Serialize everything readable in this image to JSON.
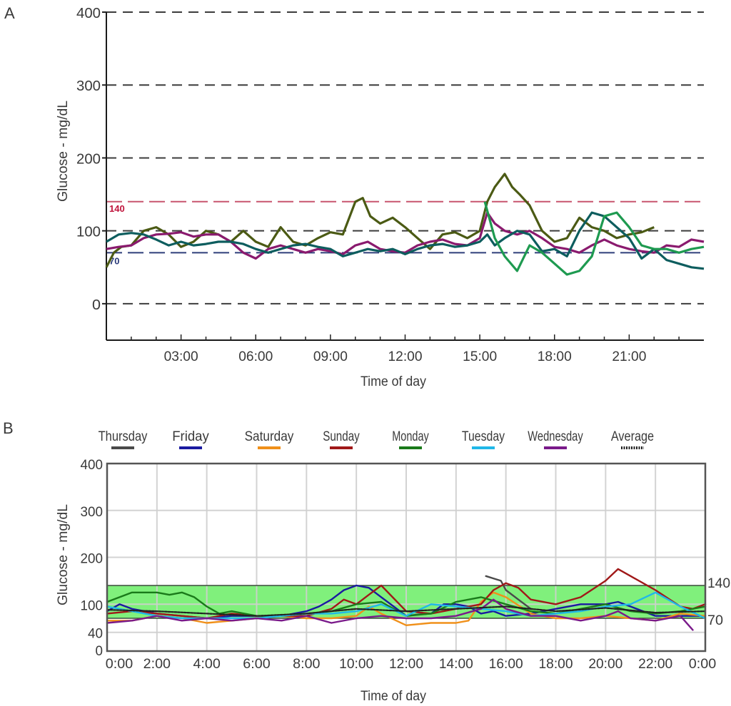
{
  "chart_data": [
    {
      "panel_label": "A",
      "type": "line",
      "xlabel": "Time of day",
      "ylabel": "Glucose - mg/dL",
      "xlim": [
        0,
        24
      ],
      "ylim": [
        -50,
        400
      ],
      "x_tick_labels": [
        "03:00",
        "06:00",
        "09:00",
        "12:00",
        "15:00",
        "18:00",
        "21:00"
      ],
      "x_tick_values": [
        3,
        6,
        9,
        12,
        15,
        18,
        21
      ],
      "y_tick_labels": [
        "400",
        "300",
        "200",
        "100",
        "0"
      ],
      "y_tick_values": [
        400,
        300,
        200,
        100,
        0
      ],
      "grid": "dashed horizontal",
      "reference_lines": [
        {
          "label": "140",
          "value": 140,
          "color": "#c8556e"
        },
        {
          "label": "70",
          "value": 70,
          "color": "#2f3f7a"
        }
      ],
      "series": [
        {
          "name": "olive",
          "color": "#4b5a14",
          "x": [
            0,
            0.3,
            0.6,
            1,
            1.5,
            2,
            2.5,
            3,
            3.5,
            4,
            4.5,
            5,
            5.5,
            6,
            6.5,
            7,
            7.5,
            8,
            8.5,
            9,
            9.5,
            10,
            10.3,
            10.6,
            11,
            11.5,
            12,
            12.5,
            13,
            13.5,
            14,
            14.5,
            15,
            15.3,
            15.6,
            16,
            16.3,
            16.6,
            17,
            17.5,
            18,
            18.5,
            19,
            19.5,
            20,
            20.5,
            21,
            21.5,
            22
          ],
          "y": [
            50,
            70,
            78,
            80,
            100,
            105,
            95,
            78,
            85,
            100,
            95,
            85,
            100,
            85,
            78,
            105,
            85,
            80,
            90,
            98,
            95,
            140,
            145,
            120,
            110,
            118,
            105,
            90,
            75,
            95,
            98,
            90,
            100,
            140,
            160,
            178,
            160,
            150,
            135,
            100,
            85,
            90,
            118,
            105,
            100,
            90,
            95,
            98,
            105
          ]
        },
        {
          "name": "magenta",
          "color": "#8a1a6e",
          "x": [
            0,
            0.5,
            1,
            1.5,
            2,
            2.5,
            3,
            3.5,
            4,
            4.5,
            5,
            5.5,
            6,
            6.5,
            7,
            7.5,
            8,
            8.5,
            9,
            9.5,
            10,
            10.5,
            11,
            11.5,
            12,
            12.5,
            13,
            13.5,
            14,
            14.5,
            15,
            15.3,
            15.6,
            16,
            16.5,
            17,
            17.5,
            18,
            18.5,
            19,
            19.5,
            20,
            20.5,
            21,
            21.5,
            22,
            22.5,
            23,
            23.5,
            24
          ],
          "y": [
            75,
            78,
            80,
            90,
            95,
            96,
            98,
            92,
            95,
            95,
            85,
            70,
            62,
            75,
            80,
            75,
            70,
            75,
            72,
            68,
            80,
            85,
            75,
            72,
            70,
            80,
            85,
            88,
            82,
            80,
            90,
            125,
            110,
            100,
            95,
            100,
            90,
            78,
            75,
            70,
            80,
            88,
            80,
            75,
            72,
            70,
            80,
            78,
            88,
            85
          ]
        },
        {
          "name": "teal",
          "color": "#0d5d5e",
          "x": [
            0,
            0.5,
            1,
            1.5,
            2,
            2.5,
            3,
            3.5,
            4,
            4.5,
            5,
            5.5,
            6,
            6.5,
            7,
            7.5,
            8,
            8.5,
            9,
            9.5,
            10,
            10.5,
            11,
            11.5,
            12,
            12.5,
            13,
            13.5,
            14,
            14.5,
            15,
            15.3,
            15.6,
            16,
            16.5,
            17,
            17.5,
            18,
            18.5,
            19,
            19.5,
            20,
            20.5,
            21,
            21.5,
            22,
            22.5,
            23,
            23.5,
            24
          ],
          "y": [
            85,
            95,
            97,
            95,
            88,
            80,
            85,
            80,
            82,
            85,
            85,
            82,
            75,
            70,
            75,
            80,
            82,
            78,
            75,
            65,
            70,
            75,
            72,
            75,
            68,
            75,
            80,
            82,
            78,
            80,
            85,
            95,
            80,
            90,
            100,
            95,
            72,
            75,
            65,
            100,
            125,
            120,
            105,
            90,
            62,
            75,
            60,
            55,
            50,
            48
          ]
        },
        {
          "name": "green",
          "color": "#1e9a50",
          "x": [
            15.2,
            15.6,
            16,
            16.5,
            17,
            17.5,
            18,
            18.5,
            19,
            19.5,
            20,
            20.5,
            21,
            21.5,
            22,
            22.5,
            23,
            23.5,
            24
          ],
          "y": [
            140,
            90,
            65,
            45,
            80,
            70,
            55,
            40,
            45,
            65,
            120,
            125,
            105,
            80,
            75,
            75,
            70,
            75,
            78
          ]
        }
      ]
    },
    {
      "panel_label": "B",
      "type": "line",
      "xlabel": "Time of day",
      "ylabel": "Glucose - mg/dL",
      "xlim": [
        0,
        24
      ],
      "ylim": [
        0,
        400
      ],
      "x_tick_labels": [
        "0:00",
        "2:00",
        "4:00",
        "6:00",
        "8:00",
        "10:00",
        "12:00",
        "14:00",
        "16:00",
        "18:00",
        "20:00",
        "22:00",
        "0:00"
      ],
      "x_tick_values": [
        0,
        2,
        4,
        6,
        8,
        10,
        12,
        14,
        16,
        18,
        20,
        22,
        24
      ],
      "y_tick_labels": [
        "400",
        "300",
        "200",
        "100",
        "40",
        "0"
      ],
      "y_tick_values": [
        400,
        300,
        200,
        100,
        40,
        0
      ],
      "grid": "on",
      "target_range": {
        "low": 70,
        "high": 140,
        "low_label": "70",
        "high_label": "140",
        "color": "#80f07c"
      },
      "legend_position": "top",
      "legend": [
        {
          "name": "Thursday",
          "color": "#4a4a4a"
        },
        {
          "name": "Friday",
          "color": "#1a1aa0"
        },
        {
          "name": "Saturday",
          "color": "#f0901a"
        },
        {
          "name": "Sunday",
          "color": "#a01818"
        },
        {
          "name": "Monday",
          "color": "#1a7a1a"
        },
        {
          "name": "Tuesday",
          "color": "#20b8e8"
        },
        {
          "name": "Wednesday",
          "color": "#7a1a8a"
        },
        {
          "name": "Average",
          "color": "#222222"
        }
      ],
      "series": [
        {
          "name": "Thursday",
          "color": "#4a4a4a",
          "x": [
            15.2,
            15.5,
            15.8,
            16,
            16.5,
            17
          ],
          "y": [
            160,
            155,
            150,
            130,
            110,
            90
          ]
        },
        {
          "name": "Friday",
          "color": "#1a1aa0",
          "x": [
            0,
            0.5,
            1,
            1.5,
            2,
            3,
            4,
            5,
            6,
            7,
            8,
            8.5,
            9,
            9.5,
            10,
            10.5,
            11,
            11.5,
            12,
            12.5,
            13,
            13.5,
            14,
            14.5,
            15,
            15.5,
            16,
            17,
            18,
            19,
            20,
            20.5,
            21,
            22,
            23,
            24
          ],
          "y": [
            85,
            100,
            90,
            85,
            80,
            75,
            70,
            75,
            75,
            75,
            85,
            95,
            110,
            130,
            140,
            135,
            115,
            95,
            75,
            78,
            80,
            100,
            100,
            95,
            80,
            85,
            75,
            80,
            90,
            100,
            100,
            105,
            95,
            75,
            75,
            75
          ]
        },
        {
          "name": "Saturday",
          "color": "#f0901a",
          "x": [
            0,
            1,
            2,
            3,
            4,
            5,
            6,
            7,
            8,
            9,
            10,
            10.5,
            11,
            12,
            13,
            14,
            14.5,
            15,
            15.5,
            16,
            17,
            18,
            19,
            20,
            21,
            22,
            23,
            24
          ],
          "y": [
            65,
            65,
            75,
            70,
            60,
            65,
            70,
            75,
            70,
            70,
            75,
            95,
            80,
            55,
            60,
            60,
            65,
            105,
            125,
            115,
            80,
            70,
            70,
            75,
            70,
            65,
            80,
            75
          ]
        },
        {
          "name": "Sunday",
          "color": "#a01818",
          "x": [
            0,
            1,
            2,
            3,
            4,
            5,
            6,
            7,
            8,
            9,
            9.5,
            10,
            10.5,
            11,
            12,
            13,
            14,
            15,
            15.5,
            16,
            16.5,
            17,
            18,
            19,
            20,
            20.5,
            21,
            22,
            23,
            23.5,
            24
          ],
          "y": [
            80,
            85,
            80,
            75,
            70,
            80,
            75,
            75,
            75,
            90,
            110,
            100,
            120,
            140,
            85,
            80,
            90,
            100,
            130,
            145,
            135,
            110,
            100,
            115,
            150,
            175,
            160,
            130,
            95,
            90,
            100
          ]
        },
        {
          "name": "Monday",
          "color": "#1a7a1a",
          "x": [
            0,
            0.5,
            1,
            2,
            2.5,
            3,
            3.5,
            4,
            4.5,
            5,
            6,
            7,
            8,
            9,
            10,
            11,
            12,
            13,
            14,
            15,
            16,
            17,
            18,
            19,
            20,
            21,
            22,
            23,
            24
          ],
          "y": [
            105,
            115,
            125,
            125,
            120,
            125,
            115,
            95,
            80,
            85,
            75,
            75,
            80,
            85,
            100,
            105,
            75,
            80,
            105,
            115,
            100,
            85,
            80,
            90,
            100,
            85,
            80,
            85,
            95
          ]
        },
        {
          "name": "Tuesday",
          "color": "#20b8e8",
          "x": [
            0,
            1,
            2,
            3,
            4,
            5,
            6,
            7,
            8,
            9,
            10,
            11,
            12,
            13,
            14,
            15,
            16,
            17,
            18,
            19,
            20,
            21,
            22,
            23,
            24
          ],
          "y": [
            95,
            85,
            75,
            70,
            70,
            70,
            70,
            75,
            80,
            80,
            85,
            100,
            75,
            100,
            95,
            90,
            85,
            75,
            80,
            85,
            95,
            100,
            125,
            95,
            70
          ]
        },
        {
          "name": "Wednesday",
          "color": "#7a1a8a",
          "x": [
            0,
            1,
            2,
            3,
            4,
            5,
            6,
            7,
            8,
            9,
            10,
            11,
            12,
            13,
            14,
            15,
            15.5,
            16,
            17,
            18,
            19,
            20,
            20.5,
            21,
            22,
            23,
            23.5
          ],
          "y": [
            60,
            65,
            75,
            65,
            70,
            65,
            70,
            65,
            75,
            60,
            70,
            75,
            70,
            70,
            75,
            90,
            110,
            90,
            75,
            75,
            65,
            75,
            85,
            70,
            65,
            75,
            45
          ]
        },
        {
          "name": "Average",
          "color": "#222222",
          "x": [
            0,
            2,
            4,
            6,
            8,
            10,
            12,
            14,
            16,
            18,
            20,
            22,
            24
          ],
          "y": [
            88,
            85,
            80,
            75,
            80,
            90,
            85,
            90,
            95,
            85,
            92,
            82,
            85
          ]
        }
      ]
    }
  ]
}
